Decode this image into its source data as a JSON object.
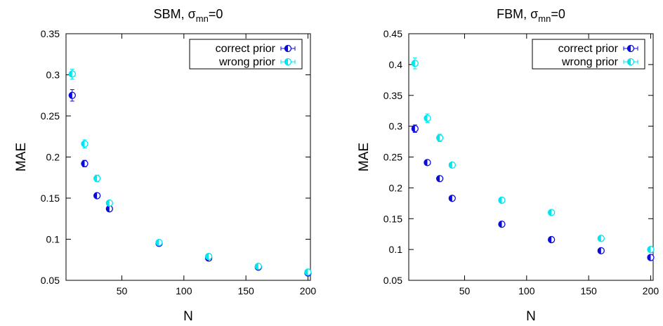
{
  "colors": {
    "correct": "#0a0adc",
    "wrong": "#00e5ee",
    "axis": "#000000"
  },
  "chart_data": [
    {
      "type": "scatter",
      "title_main": "SBM, σ",
      "title_sub": "mn",
      "title_tail": "=0",
      "xlabel": "N",
      "ylabel": "MAE",
      "xlim": [
        5,
        202
      ],
      "ylim": [
        0.05,
        0.35
      ],
      "xticks": [
        50,
        100,
        150,
        200
      ],
      "xtick_labels": [
        "50",
        "100",
        "150",
        "200"
      ],
      "yticks": [
        0.05,
        0.1,
        0.15,
        0.2,
        0.25,
        0.3,
        0.35
      ],
      "ytick_labels": [
        "0.05",
        "0.1",
        "0.15",
        "0.2",
        "0.25",
        "0.3",
        "0.35"
      ],
      "grid": false,
      "legend_position": "top-right",
      "series": [
        {
          "name": "correct prior",
          "x": [
            10,
            20,
            30,
            40,
            80,
            120,
            160,
            200
          ],
          "y": [
            0.275,
            0.192,
            0.153,
            0.137,
            0.095,
            0.077,
            0.066,
            0.059
          ],
          "err": [
            0.007,
            0.004,
            0.003,
            0.003,
            0.002,
            0.002,
            0.002,
            0.002
          ]
        },
        {
          "name": "wrong prior",
          "x": [
            10,
            20,
            30,
            40,
            80,
            120,
            160,
            200
          ],
          "y": [
            0.301,
            0.216,
            0.174,
            0.144,
            0.096,
            0.079,
            0.067,
            0.06
          ],
          "err": [
            0.006,
            0.005,
            0.004,
            0.003,
            0.002,
            0.002,
            0.002,
            0.002
          ]
        }
      ]
    },
    {
      "type": "scatter",
      "title_main": "FBM, σ",
      "title_sub": "mn",
      "title_tail": "=0",
      "xlabel": "N",
      "ylabel": "MAE",
      "xlim": [
        5,
        202
      ],
      "ylim": [
        0.05,
        0.45
      ],
      "xticks": [
        50,
        100,
        150,
        200
      ],
      "xtick_labels": [
        "50",
        "100",
        "150",
        "200"
      ],
      "yticks": [
        0.05,
        0.1,
        0.15,
        0.2,
        0.25,
        0.3,
        0.35,
        0.4,
        0.45
      ],
      "ytick_labels": [
        "0.05",
        "0.1",
        "0.15",
        "0.2",
        "0.25",
        "0.3",
        "0.35",
        "0.4",
        "0.45"
      ],
      "grid": false,
      "legend_position": "top-right",
      "series": [
        {
          "name": "correct prior",
          "x": [
            10,
            20,
            30,
            40,
            80,
            120,
            160,
            200
          ],
          "y": [
            0.296,
            0.241,
            0.215,
            0.183,
            0.141,
            0.116,
            0.098,
            0.087
          ],
          "err": [
            0.006,
            0.004,
            0.004,
            0.003,
            0.003,
            0.002,
            0.002,
            0.002
          ]
        },
        {
          "name": "wrong prior",
          "x": [
            10,
            20,
            30,
            40,
            80,
            120,
            160,
            200
          ],
          "y": [
            0.402,
            0.313,
            0.281,
            0.237,
            0.18,
            0.16,
            0.118,
            0.1
          ],
          "err": [
            0.009,
            0.007,
            0.006,
            0.005,
            0.004,
            0.004,
            0.003,
            0.002
          ]
        }
      ]
    }
  ]
}
